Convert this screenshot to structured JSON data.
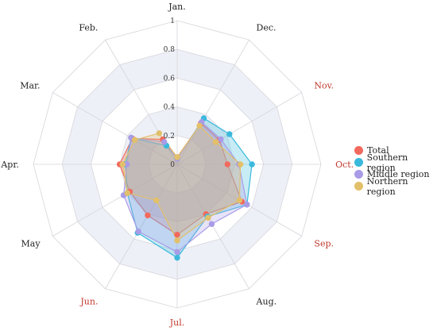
{
  "chart_data": {
    "type": "radar",
    "categories": [
      "Jan.",
      "Dec.",
      "Nov.",
      "Oct.",
      "Sep.",
      "Aug.",
      "Jul.",
      "Jun.",
      "May",
      "Apr.",
      "Mar.",
      "Feb."
    ],
    "highlight_categories": [
      "Nov.",
      "Oct.",
      "Sep.",
      "Jul.",
      "Jun."
    ],
    "label_colors": {
      "normal": "#222222",
      "highlight": "#c0392b"
    },
    "rlim": [
      0,
      1
    ],
    "rticks": [
      "0",
      "0.2",
      "0.4",
      "0.6",
      "0.8",
      "1"
    ],
    "rtick_values": [
      0,
      0.2,
      0.4,
      0.6,
      0.8,
      1
    ],
    "band_color": "#eef0f7",
    "grid_color": "#d6d6dc",
    "series": [
      {
        "name": "Total",
        "color": "#f2695d",
        "fill": "#f2695d",
        "values": [
          0.05,
          0.33,
          0.34,
          0.35,
          0.52,
          0.4,
          0.49,
          0.41,
          0.38,
          0.4,
          0.36,
          0.2
        ]
      },
      {
        "name": "Southern region",
        "color": "#3bb9dc",
        "fill": "#3bb9dc",
        "values": [
          0.04,
          0.37,
          0.42,
          0.52,
          0.56,
          0.42,
          0.65,
          0.55,
          0.4,
          0.36,
          0.37,
          0.15
        ]
      },
      {
        "name": "Middle region",
        "color": "#a99be6",
        "fill": "#a99be6",
        "values": [
          0.04,
          0.34,
          0.35,
          0.43,
          0.56,
          0.48,
          0.61,
          0.54,
          0.43,
          0.35,
          0.37,
          0.18
        ]
      },
      {
        "name": "Northern region",
        "color": "#e2c06a",
        "fill": "#e2c06a",
        "values": [
          0.05,
          0.31,
          0.31,
          0.44,
          0.5,
          0.43,
          0.53,
          0.29,
          0.4,
          0.38,
          0.34,
          0.25
        ]
      }
    ],
    "legend_position": "right"
  }
}
